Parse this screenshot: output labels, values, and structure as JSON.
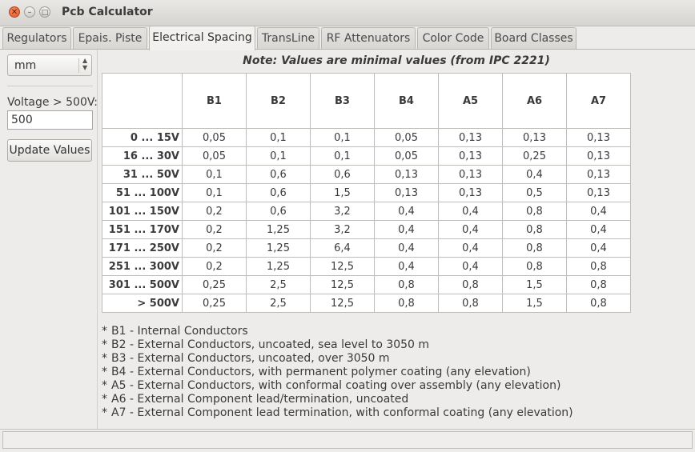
{
  "window": {
    "title": "Pcb Calculator"
  },
  "tabs": [
    {
      "label": "Regulators"
    },
    {
      "label": "Epais. Piste"
    },
    {
      "label": "Electrical Spacing"
    },
    {
      "label": "TransLine"
    },
    {
      "label": "RF Attenuators"
    },
    {
      "label": "Color Code"
    },
    {
      "label": "Board Classes"
    }
  ],
  "sidebar": {
    "unit_value": "mm",
    "voltage_label": "Voltage > 500V:",
    "voltage_value": "500",
    "update_label": "Update Values"
  },
  "main": {
    "note": "Note: Values are minimal values (from IPC 2221)",
    "table": {
      "columns": [
        "B1",
        "B2",
        "B3",
        "B4",
        "A5",
        "A6",
        "A7"
      ],
      "rows": [
        {
          "label": "0 ... 15V",
          "cells": [
            "0,05",
            "0,1",
            "0,1",
            "0,05",
            "0,13",
            "0,13",
            "0,13"
          ]
        },
        {
          "label": "16 ... 30V",
          "cells": [
            "0,05",
            "0,1",
            "0,1",
            "0,05",
            "0,13",
            "0,25",
            "0,13"
          ]
        },
        {
          "label": "31 ... 50V",
          "cells": [
            "0,1",
            "0,6",
            "0,6",
            "0,13",
            "0,13",
            "0,4",
            "0,13"
          ]
        },
        {
          "label": "51 ... 100V",
          "cells": [
            "0,1",
            "0,6",
            "1,5",
            "0,13",
            "0,13",
            "0,5",
            "0,13"
          ]
        },
        {
          "label": "101 ... 150V",
          "cells": [
            "0,2",
            "0,6",
            "3,2",
            "0,4",
            "0,4",
            "0,8",
            "0,4"
          ]
        },
        {
          "label": "151 ... 170V",
          "cells": [
            "0,2",
            "1,25",
            "3,2",
            "0,4",
            "0,4",
            "0,8",
            "0,4"
          ]
        },
        {
          "label": "171 ... 250V",
          "cells": [
            "0,2",
            "1,25",
            "6,4",
            "0,4",
            "0,4",
            "0,8",
            "0,4"
          ]
        },
        {
          "label": "251 ... 300V",
          "cells": [
            "0,2",
            "1,25",
            "12,5",
            "0,4",
            "0,4",
            "0,8",
            "0,8"
          ]
        },
        {
          "label": "301 ... 500V",
          "cells": [
            "0,25",
            "2,5",
            "12,5",
            "0,8",
            "0,8",
            "1,5",
            "0,8"
          ]
        },
        {
          "label": "> 500V",
          "cells": [
            "0,25",
            "2,5",
            "12,5",
            "0,8",
            "0,8",
            "1,5",
            "0,8"
          ]
        }
      ]
    },
    "legend": [
      "B1 - Internal Conductors",
      "B2 - External Conductors, uncoated, sea level to 3050 m",
      "B3 - External Conductors, uncoated, over 3050 m",
      "B4 - External Conductors, with permanent polymer coating (any elevation)",
      "A5 - External Conductors, with conformal coating over assembly (any elevation)",
      "A6 - External Component lead/termination, uncoated",
      "A7 - External Component lead termination, with conformal coating (any elevation)"
    ]
  }
}
